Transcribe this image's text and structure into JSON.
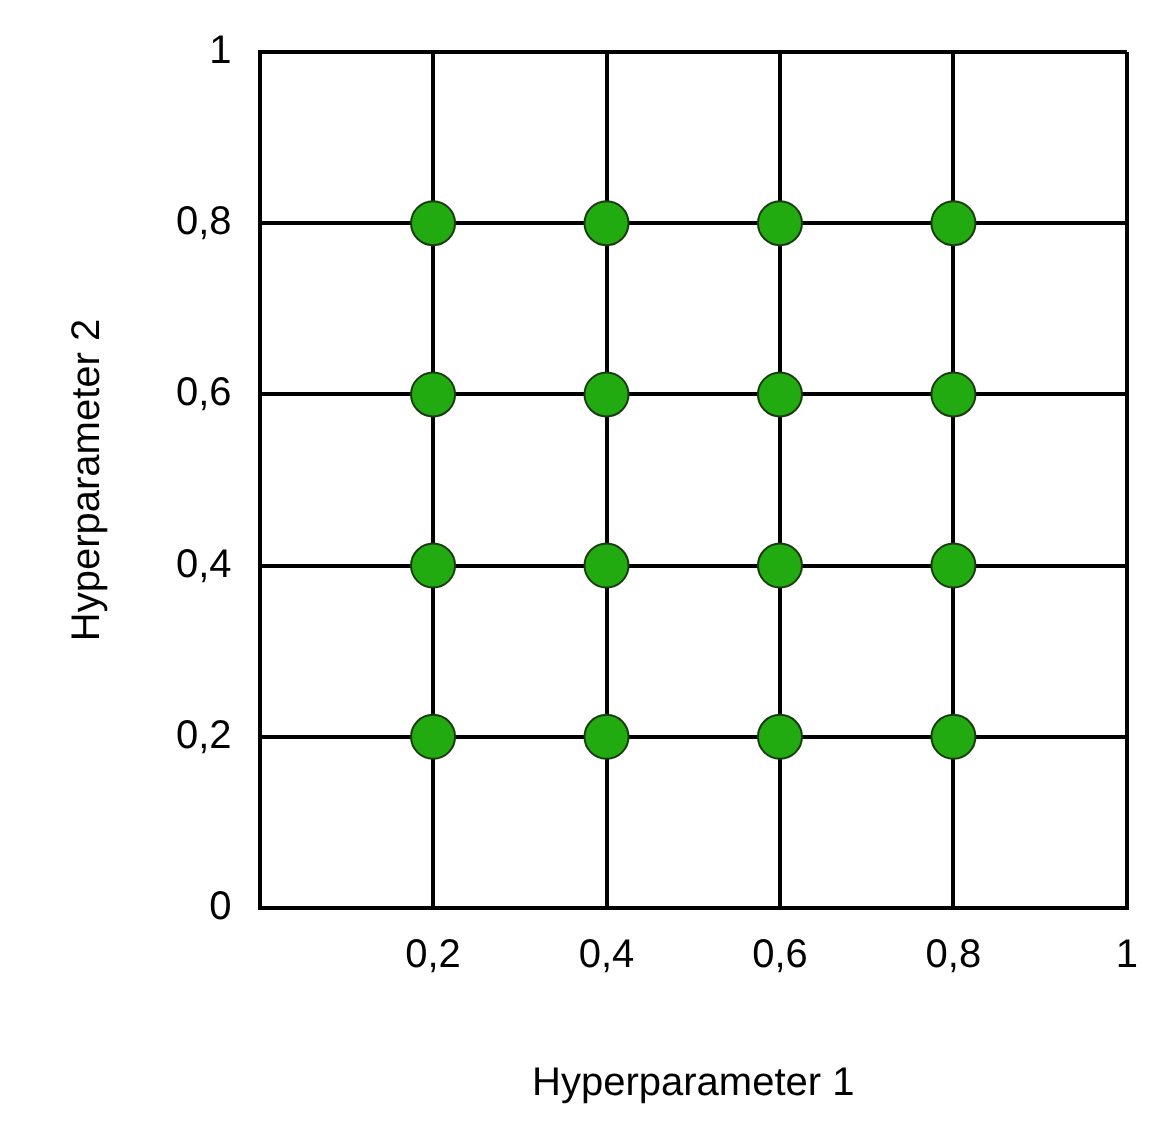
{
  "chart_data": {
    "type": "scatter",
    "xlabel": "Hyperparameter 1",
    "ylabel": "Hyperparameter 2",
    "x": [
      0.2,
      0.4,
      0.6,
      0.8,
      0.2,
      0.4,
      0.6,
      0.8,
      0.2,
      0.4,
      0.6,
      0.8,
      0.2,
      0.4,
      0.6,
      0.8
    ],
    "series": [
      {
        "color": "#22aa11",
        "values": [
          0.2,
          0.2,
          0.2,
          0.2,
          0.4,
          0.4,
          0.4,
          0.4,
          0.6,
          0.6,
          0.6,
          0.6,
          0.8,
          0.8,
          0.8,
          0.8
        ]
      }
    ],
    "xlim": [
      0,
      1
    ],
    "ylim": [
      0,
      1
    ],
    "xticks": [
      {
        "value": 0.2,
        "label": "0,2"
      },
      {
        "value": 0.4,
        "label": "0,4"
      },
      {
        "value": 0.6,
        "label": "0,6"
      },
      {
        "value": 0.8,
        "label": "0,8"
      },
      {
        "value": 1,
        "label": "1"
      }
    ],
    "yticks": [
      {
        "value": 0,
        "label": "0"
      },
      {
        "value": 0.2,
        "label": "0,2"
      },
      {
        "value": 0.4,
        "label": "0,4"
      },
      {
        "value": 0.6,
        "label": "0,6"
      },
      {
        "value": 0.8,
        "label": "0,8"
      },
      {
        "value": 1,
        "label": "1"
      }
    ],
    "grid": true,
    "legend": false,
    "marker": "circle"
  }
}
